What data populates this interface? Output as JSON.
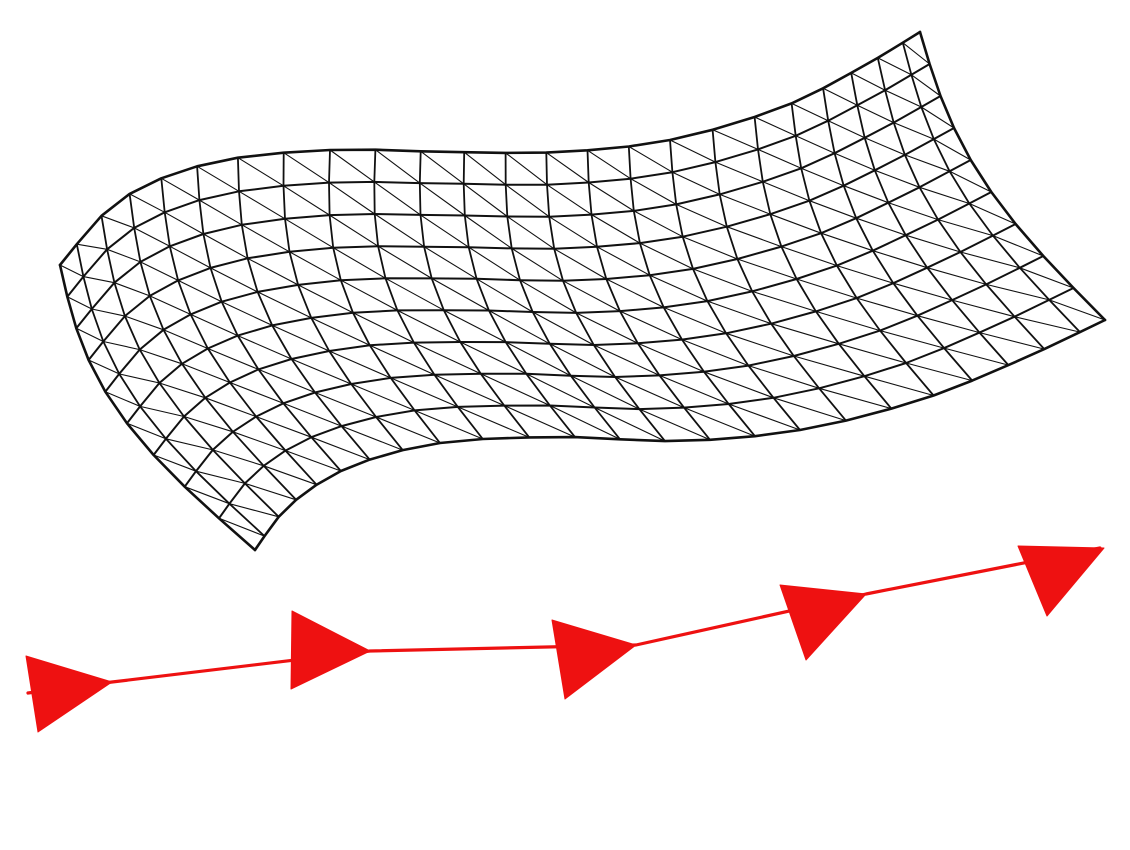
{
  "diagram": {
    "kind": "triangulated-mesh-surface-and-path",
    "mesh": {
      "rows": 9,
      "columns": 24,
      "line_color": "#111111",
      "diagonals": true
    },
    "path": {
      "color": "#ee1111",
      "arrow_count": 5
    },
    "background": "#ffffff"
  }
}
